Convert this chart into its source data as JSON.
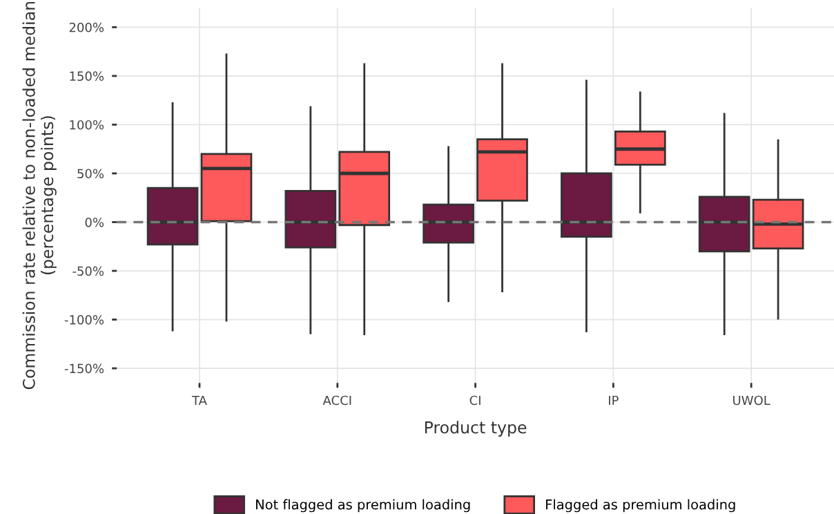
{
  "chart_data": {
    "type": "box",
    "xlabel": "Product type",
    "ylabel": "Commission rate relative to non-loaded median\n(percentage points)",
    "categories": [
      "TA",
      "ACCI",
      "CI",
      "IP",
      "UWOL"
    ],
    "series": [
      {
        "name": "Not flagged as premium loading",
        "color": "#6b1a42",
        "boxes": [
          {
            "low": -111,
            "q1": -23,
            "median": 0,
            "q3": 35,
            "high": 122
          },
          {
            "low": -114,
            "q1": -26,
            "median": 0,
            "q3": 32,
            "high": 118
          },
          {
            "low": -81,
            "q1": -21,
            "median": 0,
            "q3": 18,
            "high": 77
          },
          {
            "low": -112,
            "q1": -15,
            "median": 0,
            "q3": 50,
            "high": 145
          },
          {
            "low": -115,
            "q1": -30,
            "median": 0,
            "q3": 26,
            "high": 111
          }
        ]
      },
      {
        "name": "Flagged as premium loading",
        "color": "#fe5a5b",
        "boxes": [
          {
            "low": -101,
            "q1": 1,
            "median": 55,
            "q3": 70,
            "high": 172
          },
          {
            "low": -115,
            "q1": -3,
            "median": 50,
            "q3": 72,
            "high": 162
          },
          {
            "low": -71,
            "q1": 22,
            "median": 72,
            "q3": 85,
            "high": 162
          },
          {
            "low": 10,
            "q1": 59,
            "median": 75,
            "q3": 93,
            "high": 133
          },
          {
            "low": -99,
            "q1": -27,
            "median": -2,
            "q3": 23,
            "high": 84
          }
        ]
      }
    ],
    "ylim": [
      -165,
      220
    ],
    "yticks": [
      {
        "value": -150,
        "label": "-150%"
      },
      {
        "value": -100,
        "label": "-100%"
      },
      {
        "value": -50,
        "label": "-50%"
      },
      {
        "value": 0,
        "label": "0%"
      },
      {
        "value": 50,
        "label": "50%"
      },
      {
        "value": 100,
        "label": "100%"
      },
      {
        "value": 150,
        "label": "150%"
      },
      {
        "value": 200,
        "label": "200%"
      }
    ],
    "ref_lines": [
      {
        "axis": "y",
        "value": 0,
        "color": "#777777",
        "line_style": "dashed"
      }
    ],
    "grid": true,
    "legend": "bottom"
  }
}
